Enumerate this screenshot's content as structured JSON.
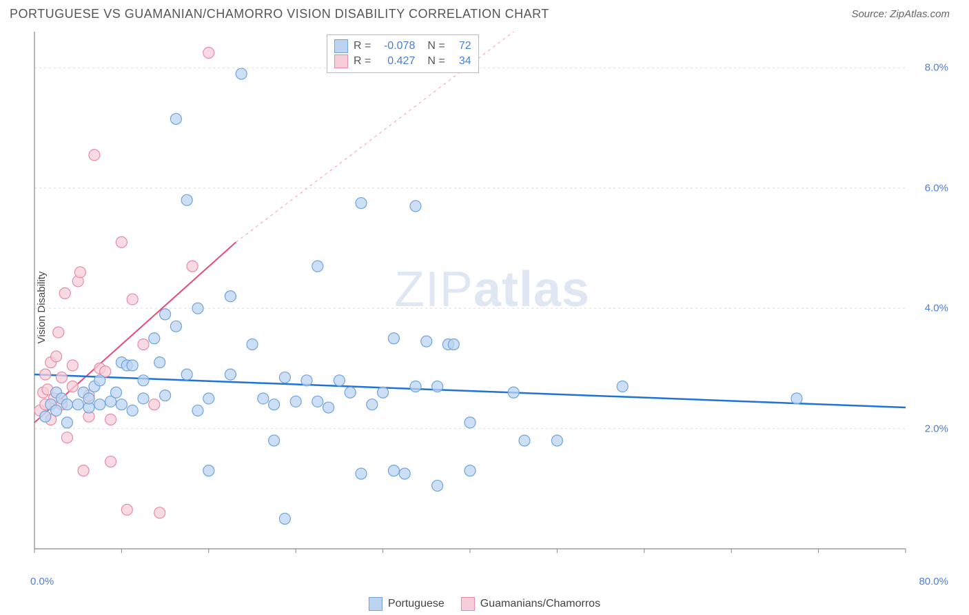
{
  "title": "PORTUGUESE VS GUAMANIAN/CHAMORRO VISION DISABILITY CORRELATION CHART",
  "source": "Source: ZipAtlas.com",
  "watermark": {
    "part1": "ZIP",
    "part2": "atlas"
  },
  "ylabel": "Vision Disability",
  "chart": {
    "type": "scatter",
    "xlim": [
      0,
      80
    ],
    "ylim": [
      0,
      8.6
    ],
    "x_tick_min": "0.0%",
    "x_tick_max": "80.0%",
    "y_ticks": [
      {
        "v": 2.0,
        "label": "2.0%"
      },
      {
        "v": 4.0,
        "label": "4.0%"
      },
      {
        "v": 6.0,
        "label": "6.0%"
      },
      {
        "v": 8.0,
        "label": "8.0%"
      }
    ],
    "x_minor_ticks": [
      0,
      8,
      16,
      24,
      32,
      40,
      48,
      56,
      64,
      72,
      80
    ],
    "grid_color": "#dcdcdc",
    "axis_color": "#888888",
    "background": "#ffffff",
    "marker_radius": 8,
    "series": {
      "portuguese": {
        "label": "Portuguese",
        "fill": "#bcd4f0",
        "stroke": "#6fa3dd",
        "R": "-0.078",
        "N": "72",
        "trend": {
          "x1": 0,
          "y1": 2.9,
          "x2": 80,
          "y2": 2.35,
          "dash_after_x": 80,
          "color": "#1e73d8",
          "width": 2.5
        },
        "points": [
          [
            1,
            2.2
          ],
          [
            1.5,
            2.4
          ],
          [
            2,
            2.6
          ],
          [
            2,
            2.3
          ],
          [
            2.5,
            2.5
          ],
          [
            3,
            2.4
          ],
          [
            3,
            2.1
          ],
          [
            4,
            2.4
          ],
          [
            4.5,
            2.6
          ],
          [
            5,
            2.35
          ],
          [
            5,
            2.5
          ],
          [
            5.5,
            2.7
          ],
          [
            6,
            2.4
          ],
          [
            6,
            2.8
          ],
          [
            7,
            2.45
          ],
          [
            7.5,
            2.6
          ],
          [
            8,
            2.4
          ],
          [
            8,
            3.1
          ],
          [
            8.5,
            3.05
          ],
          [
            9,
            3.05
          ],
          [
            9,
            2.3
          ],
          [
            10,
            2.5
          ],
          [
            10,
            2.8
          ],
          [
            11,
            3.5
          ],
          [
            11.5,
            3.1
          ],
          [
            12,
            2.55
          ],
          [
            12,
            3.9
          ],
          [
            13,
            3.7
          ],
          [
            13,
            7.15
          ],
          [
            14,
            2.9
          ],
          [
            14,
            5.8
          ],
          [
            15,
            4.0
          ],
          [
            15,
            2.3
          ],
          [
            16,
            1.3
          ],
          [
            16,
            2.5
          ],
          [
            18,
            2.9
          ],
          [
            18,
            4.2
          ],
          [
            19,
            7.9
          ],
          [
            20,
            3.4
          ],
          [
            21,
            2.5
          ],
          [
            22,
            2.4
          ],
          [
            22,
            1.8
          ],
          [
            23,
            2.85
          ],
          [
            23,
            0.5
          ],
          [
            24,
            2.45
          ],
          [
            25,
            2.8
          ],
          [
            26,
            2.45
          ],
          [
            26,
            4.7
          ],
          [
            27,
            2.35
          ],
          [
            28,
            2.8
          ],
          [
            29,
            2.6
          ],
          [
            30,
            5.75
          ],
          [
            30,
            1.25
          ],
          [
            31,
            2.4
          ],
          [
            32,
            2.6
          ],
          [
            33,
            1.3
          ],
          [
            33,
            3.5
          ],
          [
            34,
            1.25
          ],
          [
            35,
            2.7
          ],
          [
            35,
            5.7
          ],
          [
            36,
            3.45
          ],
          [
            37,
            2.7
          ],
          [
            37,
            1.05
          ],
          [
            38,
            3.4
          ],
          [
            38.5,
            3.4
          ],
          [
            40,
            2.1
          ],
          [
            40,
            1.3
          ],
          [
            44,
            2.6
          ],
          [
            45,
            1.8
          ],
          [
            48,
            1.8
          ],
          [
            54,
            2.7
          ],
          [
            70,
            2.5
          ]
        ]
      },
      "guamanian": {
        "label": "Guamanians/Chamorros",
        "fill": "#f6cdd8",
        "stroke": "#e88aa5",
        "R": "0.427",
        "N": "34",
        "trend": {
          "x1": 0,
          "y1": 2.1,
          "x2": 18.5,
          "y2": 5.1,
          "dash_to_x": 44,
          "dash_to_y": 9.2,
          "color": "#e84a78",
          "width": 2
        },
        "points": [
          [
            0.5,
            2.3
          ],
          [
            0.8,
            2.6
          ],
          [
            1,
            2.4
          ],
          [
            1,
            2.9
          ],
          [
            1.2,
            2.65
          ],
          [
            1.5,
            2.15
          ],
          [
            1.5,
            3.1
          ],
          [
            1.8,
            2.5
          ],
          [
            2,
            3.2
          ],
          [
            2.2,
            3.6
          ],
          [
            2.5,
            2.85
          ],
          [
            2.5,
            2.4
          ],
          [
            2.8,
            4.25
          ],
          [
            3,
            1.85
          ],
          [
            3.5,
            2.7
          ],
          [
            3.5,
            3.05
          ],
          [
            4,
            4.45
          ],
          [
            4.2,
            4.6
          ],
          [
            4.5,
            1.3
          ],
          [
            5,
            2.2
          ],
          [
            5,
            2.55
          ],
          [
            5.5,
            6.55
          ],
          [
            6,
            3.0
          ],
          [
            6.5,
            2.95
          ],
          [
            7,
            2.15
          ],
          [
            7,
            1.45
          ],
          [
            8,
            5.1
          ],
          [
            8.5,
            0.65
          ],
          [
            9,
            4.15
          ],
          [
            10,
            3.4
          ],
          [
            11,
            2.4
          ],
          [
            11.5,
            0.6
          ],
          [
            14.5,
            4.7
          ],
          [
            16,
            8.25
          ]
        ]
      }
    }
  }
}
